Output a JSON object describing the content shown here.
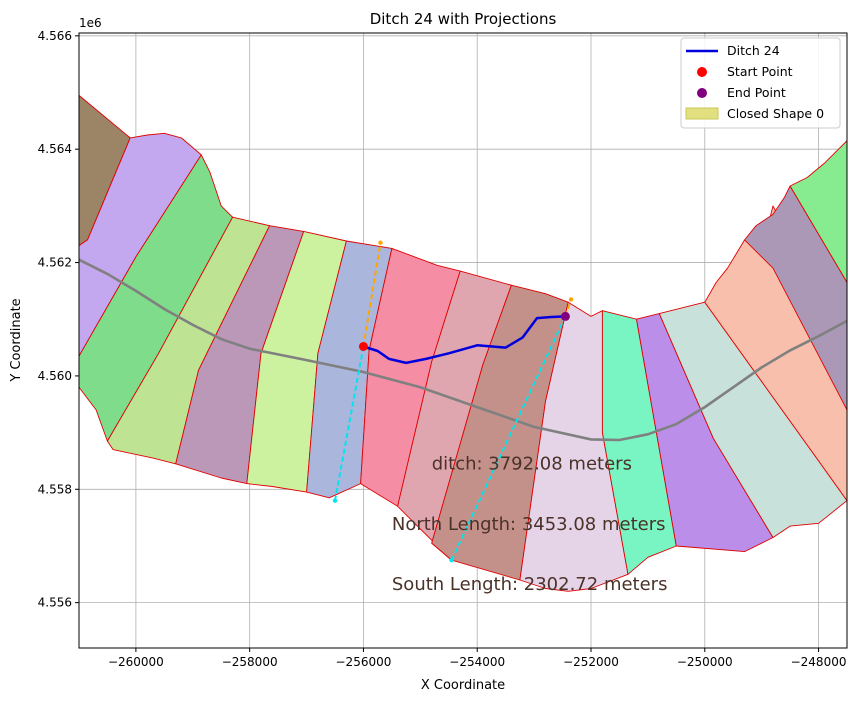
{
  "chart_data": {
    "type": "line",
    "title": "Ditch 24 with Projections",
    "xlabel": "X Coordinate",
    "ylabel": "Y Coordinate",
    "y_offset_label": "1e6",
    "xlim": [
      -261000,
      -247500
    ],
    "ylim": [
      4555200,
      4566050
    ],
    "grid": true,
    "legend_position": "upper right",
    "x_ticks": [
      -260000,
      -258000,
      -256000,
      -254000,
      -252000,
      -250000,
      -248000
    ],
    "x_tick_labels": [
      "−260000",
      "−258000",
      "−256000",
      "−254000",
      "−252000",
      "−250000",
      "−248000"
    ],
    "y_ticks": [
      4556000,
      4558000,
      4560000,
      4562000,
      4564000,
      4566000
    ],
    "y_tick_labels": [
      "4.556",
      "4.558",
      "4.560",
      "4.562",
      "4.564",
      "4.566"
    ],
    "legend": [
      {
        "label": "Ditch 24",
        "kind": "line",
        "color": "#0000dd"
      },
      {
        "label": "Start Point",
        "kind": "marker",
        "color": "#ff0000"
      },
      {
        "label": "End Point",
        "kind": "marker",
        "color": "#800080"
      },
      {
        "label": "Closed Shape 0",
        "kind": "patch",
        "color": "#e2e07e"
      }
    ],
    "annotations": [
      {
        "text": "ditch: 3792.08 meters",
        "x": -254800,
        "y": 4558350
      },
      {
        "text": "North Length: 3453.08 meters",
        "x": -255500,
        "y": 4557280
      },
      {
        "text": "South Length: 2302.72 meters",
        "x": -255500,
        "y": 4556220
      }
    ],
    "ditch": {
      "color": "#0000dd",
      "points": [
        [
          -256000,
          4560520
        ],
        [
          -255750,
          4560440
        ],
        [
          -255550,
          4560300
        ],
        [
          -255250,
          4560230
        ],
        [
          -254900,
          4560300
        ],
        [
          -254500,
          4560400
        ],
        [
          -254000,
          4560540
        ],
        [
          -253500,
          4560500
        ],
        [
          -253200,
          4560680
        ],
        [
          -252950,
          4561020
        ],
        [
          -252700,
          4561040
        ],
        [
          -252450,
          4561050
        ]
      ]
    },
    "start_point": {
      "x": -256000,
      "y": 4560520,
      "color": "#ff0000"
    },
    "end_point": {
      "x": -252450,
      "y": 4561050,
      "color": "#800080"
    },
    "centerline": {
      "color": "#808080",
      "points": [
        [
          -261000,
          4562050
        ],
        [
          -260500,
          4561800
        ],
        [
          -260000,
          4561500
        ],
        [
          -259500,
          4561180
        ],
        [
          -259000,
          4560900
        ],
        [
          -258500,
          4560650
        ],
        [
          -258000,
          4560480
        ],
        [
          -257000,
          4560280
        ],
        [
          -256000,
          4560070
        ],
        [
          -255000,
          4559800
        ],
        [
          -254000,
          4559450
        ],
        [
          -253000,
          4559100
        ],
        [
          -252000,
          4558880
        ],
        [
          -251500,
          4558870
        ],
        [
          -251000,
          4558970
        ],
        [
          -250500,
          4559150
        ],
        [
          -250000,
          4559450
        ],
        [
          -249500,
          4559800
        ],
        [
          -249000,
          4560150
        ],
        [
          -248500,
          4560450
        ],
        [
          -248000,
          4560700
        ],
        [
          -247500,
          4560970
        ]
      ]
    },
    "projections": [
      {
        "color": "#ffa500",
        "points": [
          [
            -256000,
            4560520
          ],
          [
            -255700,
            4562350
          ]
        ]
      },
      {
        "color": "#00e5ee",
        "points": [
          [
            -256000,
            4560520
          ],
          [
            -256500,
            4557800
          ]
        ]
      },
      {
        "color": "#ffa500",
        "points": [
          [
            -252450,
            4561050
          ],
          [
            -252350,
            4561350
          ]
        ]
      },
      {
        "color": "#00e5ee",
        "points": [
          [
            -252450,
            4561050
          ],
          [
            -254450,
            4556750
          ]
        ]
      }
    ],
    "polygons": [
      {
        "color": "#9c8466",
        "points": [
          [
            -261000,
            4564950
          ],
          [
            -260100,
            4564200
          ],
          [
            -260850,
            4562400
          ],
          [
            -261000,
            4562300
          ]
        ]
      },
      {
        "color": "#c4a8ef",
        "points": [
          [
            -260100,
            4564200
          ],
          [
            -259800,
            4564250
          ],
          [
            -259500,
            4564280
          ],
          [
            -259200,
            4564200
          ],
          [
            -258850,
            4563900
          ],
          [
            -260000,
            4562100
          ],
          [
            -261000,
            4560350
          ],
          [
            -261000,
            4562300
          ],
          [
            -260850,
            4562400
          ]
        ]
      },
      {
        "color": "#7fdc8a",
        "points": [
          [
            -258850,
            4563900
          ],
          [
            -258700,
            4563600
          ],
          [
            -258500,
            4563000
          ],
          [
            -258300,
            4562800
          ],
          [
            -259600,
            4560400
          ],
          [
            -260500,
            4558850
          ],
          [
            -260700,
            4559400
          ],
          [
            -261000,
            4559800
          ],
          [
            -261000,
            4560350
          ],
          [
            -260000,
            4562100
          ]
        ]
      },
      {
        "color": "#bde393",
        "points": [
          [
            -258300,
            4562800
          ],
          [
            -257650,
            4562650
          ],
          [
            -258900,
            4560100
          ],
          [
            -259300,
            4558450
          ],
          [
            -259700,
            4558550
          ],
          [
            -260400,
            4558700
          ],
          [
            -260500,
            4558850
          ],
          [
            -259600,
            4560400
          ]
        ]
      },
      {
        "color": "#bb98b8",
        "points": [
          [
            -257650,
            4562650
          ],
          [
            -257050,
            4562550
          ],
          [
            -257800,
            4560400
          ],
          [
            -258050,
            4558100
          ],
          [
            -258500,
            4558200
          ],
          [
            -259300,
            4558450
          ],
          [
            -258900,
            4560100
          ]
        ]
      },
      {
        "color": "#ccf2a0",
        "points": [
          [
            -257050,
            4562550
          ],
          [
            -256300,
            4562380
          ],
          [
            -256800,
            4560400
          ],
          [
            -257000,
            4557950
          ],
          [
            -257600,
            4558050
          ],
          [
            -258050,
            4558100
          ],
          [
            -257800,
            4560400
          ]
        ]
      },
      {
        "color": "#aab6db",
        "points": [
          [
            -256300,
            4562380
          ],
          [
            -255500,
            4562250
          ],
          [
            -255900,
            4560450
          ],
          [
            -256050,
            4558100
          ],
          [
            -256600,
            4557850
          ],
          [
            -257000,
            4557950
          ],
          [
            -256800,
            4560400
          ]
        ]
      },
      {
        "color": "#f58ea5",
        "points": [
          [
            -255500,
            4562250
          ],
          [
            -254700,
            4561950
          ],
          [
            -254300,
            4561850
          ],
          [
            -254800,
            4560250
          ],
          [
            -255400,
            4557700
          ],
          [
            -256050,
            4558100
          ],
          [
            -255900,
            4560450
          ]
        ]
      },
      {
        "color": "#e0a6b0",
        "points": [
          [
            -254300,
            4561850
          ],
          [
            -253400,
            4561600
          ],
          [
            -253900,
            4560200
          ],
          [
            -254800,
            4557050
          ],
          [
            -254450,
            4556750
          ],
          [
            -255400,
            4557700
          ],
          [
            -254800,
            4560250
          ]
        ]
      },
      {
        "color": "#c4918a",
        "points": [
          [
            -253400,
            4561600
          ],
          [
            -252800,
            4561450
          ],
          [
            -252400,
            4561300
          ],
          [
            -252800,
            4559550
          ],
          [
            -253250,
            4556400
          ],
          [
            -254450,
            4556750
          ],
          [
            -254800,
            4557050
          ],
          [
            -253900,
            4560200
          ]
        ]
      },
      {
        "color": "#e5d4e8",
        "points": [
          [
            -252400,
            4561300
          ],
          [
            -252000,
            4561050
          ],
          [
            -251800,
            4561150
          ],
          [
            -251800,
            4559000
          ],
          [
            -251350,
            4556500
          ],
          [
            -252000,
            4556250
          ],
          [
            -252400,
            4556200
          ],
          [
            -252800,
            4556250
          ],
          [
            -253250,
            4556400
          ],
          [
            -252800,
            4559550
          ]
        ]
      },
      {
        "color": "#79f5c4",
        "points": [
          [
            -251800,
            4561150
          ],
          [
            -251200,
            4561000
          ],
          [
            -250500,
            4557000
          ],
          [
            -251000,
            4556800
          ],
          [
            -251350,
            4556500
          ],
          [
            -251800,
            4559000
          ]
        ]
      },
      {
        "color": "#bb8ee9",
        "points": [
          [
            -251200,
            4561000
          ],
          [
            -250800,
            4561100
          ],
          [
            -249850,
            4558900
          ],
          [
            -248800,
            4557150
          ],
          [
            -249300,
            4556900
          ],
          [
            -250500,
            4557000
          ]
        ]
      },
      {
        "color": "#c8e1da",
        "points": [
          [
            -250800,
            4561100
          ],
          [
            -250000,
            4561300
          ],
          [
            -249000,
            4559900
          ],
          [
            -248000,
            4558500
          ],
          [
            -247500,
            4557800
          ],
          [
            -248000,
            4557400
          ],
          [
            -248500,
            4557350
          ],
          [
            -248800,
            4557150
          ],
          [
            -249850,
            4558900
          ]
        ]
      },
      {
        "color": "#f8c0ac",
        "points": [
          [
            -250000,
            4561300
          ],
          [
            -249800,
            4561650
          ],
          [
            -249600,
            4561900
          ],
          [
            -249300,
            4562400
          ],
          [
            -249000,
            4562200
          ],
          [
            -248800,
            4563000
          ],
          [
            -247500,
            4560500
          ],
          [
            -247500,
            4557800
          ],
          [
            -248000,
            4558500
          ],
          [
            -249000,
            4559900
          ]
        ]
      },
      {
        "color": "#aa98b6",
        "points": [
          [
            -249300,
            4562400
          ],
          [
            -249100,
            4562650
          ],
          [
            -248800,
            4562850
          ],
          [
            -248600,
            4563150
          ],
          [
            -248500,
            4563350
          ],
          [
            -247500,
            4561650
          ],
          [
            -247500,
            4559400
          ],
          [
            -248800,
            4561900
          ]
        ]
      },
      {
        "color": "#86ec8f",
        "points": [
          [
            -248500,
            4563350
          ],
          [
            -248200,
            4563500
          ],
          [
            -247900,
            4563750
          ],
          [
            -247500,
            4564150
          ],
          [
            -247500,
            4561650
          ]
        ]
      }
    ]
  }
}
